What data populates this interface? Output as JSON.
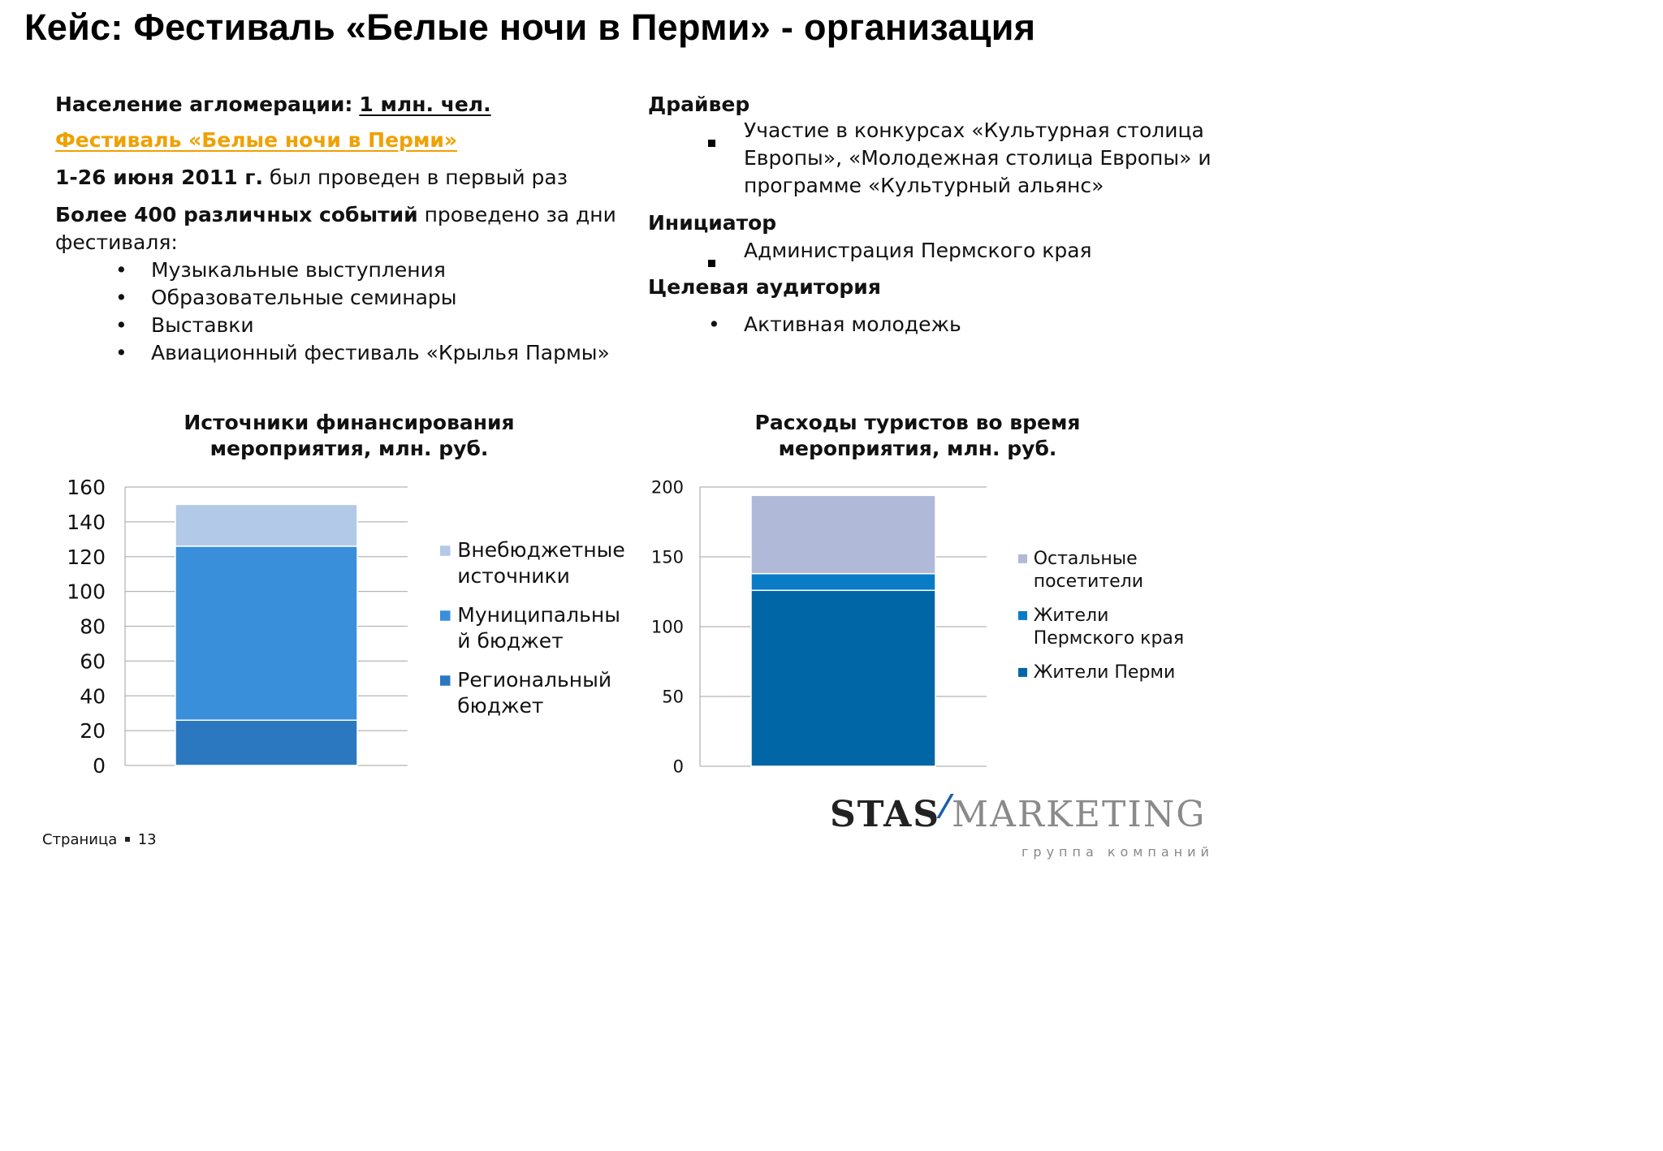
{
  "title": "Кейс: Фестиваль «Белые ночи в Перми» - организация",
  "left": {
    "population_label": "Население агломерации:",
    "population_value": "1 млн. чел.",
    "festival_link": "Фестиваль «Белые ночи в Перми»",
    "dates_bold": "1-26 июня 2011 г.",
    "dates_rest": "был проведен в первый раз",
    "events_bold": "Более 400 различных событий",
    "events_rest": "проведено за дни",
    "events_rest2": "фестиваля:",
    "events": [
      "Музыкальные выступления",
      "Образовательные семинары",
      "Выставки",
      "Авиационный фестиваль «Крылья Пармы»"
    ]
  },
  "right": {
    "driver_heading": "Драйвер",
    "driver_items": [
      "Участие в конкурсах «Культурная столица",
      "Европы», «Молодежная столица Европы» и",
      "программе «Культурный альянс»"
    ],
    "initiator_heading": "Инициатор",
    "initiator_item": "Администрация Пермского края",
    "audience_heading": "Целевая аудитория",
    "audience_item": "Активная молодежь"
  },
  "chart_data": [
    {
      "type": "bar",
      "stacked": true,
      "title": "Источники финансирования мероприятия, млн. руб.",
      "title_lines": [
        "Источники финансирования",
        "мероприятия, млн. руб."
      ],
      "ylim": [
        0,
        160
      ],
      "yticks": [
        0,
        20,
        40,
        60,
        80,
        100,
        120,
        140,
        160
      ],
      "series": [
        {
          "name": "Региональный бюджет",
          "legend_lines": [
            "Региональный",
            "бюджет"
          ],
          "values": [
            26
          ],
          "color": "#2c78c0"
        },
        {
          "name": "Муниципальный бюджет",
          "legend_lines": [
            "Муниципальны",
            "й бюджет"
          ],
          "values": [
            100
          ],
          "color": "#3a8fda"
        },
        {
          "name": "Внебюджетные источники",
          "legend_lines": [
            "Внебюджетные",
            "источники"
          ],
          "values": [
            24
          ],
          "color": "#b3c9e8"
        }
      ],
      "legend_order": [
        2,
        1,
        0
      ]
    },
    {
      "type": "bar",
      "stacked": true,
      "title": "Расходы туристов во время мероприятия, млн. руб.",
      "title_lines": [
        "Расходы туристов во время",
        "мероприятия, млн. руб."
      ],
      "ylim": [
        0,
        200
      ],
      "yticks": [
        0,
        50,
        100,
        150,
        200
      ],
      "series": [
        {
          "name": "Жители Перми",
          "legend_lines": [
            "Жители Перми"
          ],
          "values": [
            126
          ],
          "color": "#0066a6"
        },
        {
          "name": "Жители Пермского края",
          "legend_lines": [
            "Жители",
            "Пермского края"
          ],
          "values": [
            12
          ],
          "color": "#0a7cc6"
        },
        {
          "name": "Остальные посетители",
          "legend_lines": [
            "Остальные",
            "посетители"
          ],
          "values": [
            56
          ],
          "color": "#b0b9d8"
        }
      ],
      "legend_order": [
        2,
        1,
        0
      ]
    }
  ],
  "footer": {
    "page_label": "Страница",
    "page_number": "13"
  },
  "logo": {
    "left": "STAS",
    "right": "MARKETING",
    "sub": "группа компаний"
  },
  "colors": {
    "accent": "#f0a000"
  }
}
